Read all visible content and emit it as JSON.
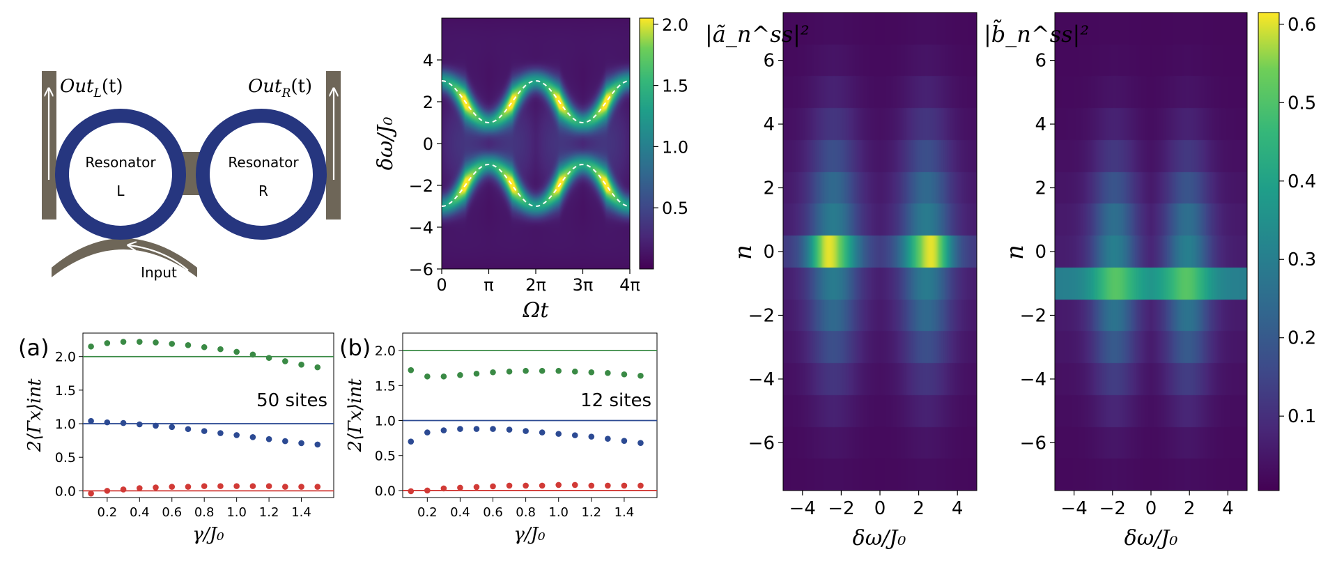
{
  "schematic": {
    "out_left": "Out",
    "out_left_sub": "L",
    "out_right": "Out",
    "out_right_sub": "R",
    "paren_t": "(t)",
    "resonator_left_line1": "Resonator",
    "resonator_left_line2": "L",
    "resonator_right_line1": "Resonator",
    "resonator_right_line2": "R",
    "input_label": "Input",
    "ring_color": "#26367f",
    "waveguide_color": "#6e6658"
  },
  "colors": {
    "green": "#3a8a45",
    "blue": "#2c4a93",
    "red": "#d13a36",
    "dashed": "#ffffff"
  },
  "chart_data": [
    {
      "id": "spectrogram",
      "type": "heatmap",
      "xlabel": "Ωt",
      "ylabel": "δω/J₀",
      "x_ticks": [
        "0",
        "π",
        "2π",
        "3π",
        "4π"
      ],
      "y_ticks": [
        "−6",
        "−4",
        "−2",
        "0",
        "2",
        "4"
      ],
      "xlim": [
        0,
        4
      ],
      "xlim_unit": "π",
      "ylim": [
        -6,
        6
      ],
      "colorbar_ticks": [
        "0.5",
        "1.0",
        "1.5",
        "2.0"
      ],
      "colorbar_range": [
        0,
        2.05
      ],
      "dashed_curves": "±(2 + cos Ωt)"
    },
    {
      "id": "a",
      "panel_label": "(a)",
      "type": "scatter",
      "annotation": "50 sites",
      "xlabel": "γ/J₀",
      "ylabel": "2⟨Γx⟩int",
      "xlim": [
        0.05,
        1.6
      ],
      "ylim": [
        -0.1,
        2.35
      ],
      "x_ticks": [
        "0.2",
        "0.4",
        "0.6",
        "0.8",
        "1.0",
        "1.2",
        "1.4"
      ],
      "y_ticks": [
        "0.0",
        "0.5",
        "1.0",
        "1.5",
        "2.0"
      ],
      "hlines": [
        2.0,
        1.0,
        0.0
      ],
      "x": [
        0.1,
        0.2,
        0.3,
        0.4,
        0.5,
        0.6,
        0.7,
        0.8,
        0.9,
        1.0,
        1.1,
        1.2,
        1.3,
        1.4,
        1.5
      ],
      "series": [
        {
          "values": [
            2.15,
            2.2,
            2.22,
            2.22,
            2.21,
            2.19,
            2.17,
            2.14,
            2.11,
            2.07,
            2.03,
            1.98,
            1.93,
            1.88,
            1.84
          ]
        },
        {
          "values": [
            1.04,
            1.02,
            1.01,
            0.99,
            0.97,
            0.95,
            0.92,
            0.89,
            0.86,
            0.83,
            0.8,
            0.77,
            0.74,
            0.71,
            0.69
          ]
        },
        {
          "values": [
            -0.04,
            0.0,
            0.02,
            0.04,
            0.05,
            0.06,
            0.06,
            0.07,
            0.07,
            0.07,
            0.07,
            0.07,
            0.06,
            0.06,
            0.06
          ]
        }
      ]
    },
    {
      "id": "b",
      "panel_label": "(b)",
      "type": "scatter",
      "annotation": "12 sites",
      "xlabel": "γ/J₀",
      "ylabel": "2⟨Γx⟩int",
      "xlim": [
        0.05,
        1.6
      ],
      "ylim": [
        -0.1,
        2.25
      ],
      "x_ticks": [
        "0.2",
        "0.4",
        "0.6",
        "0.8",
        "1.0",
        "1.2",
        "1.4"
      ],
      "y_ticks": [
        "0.0",
        "0.5",
        "1.0",
        "1.5",
        "2.0"
      ],
      "hlines": [
        2.0,
        1.0,
        0.0
      ],
      "x": [
        0.1,
        0.2,
        0.3,
        0.4,
        0.5,
        0.6,
        0.7,
        0.8,
        0.9,
        1.0,
        1.1,
        1.2,
        1.3,
        1.4,
        1.5
      ],
      "series": [
        {
          "values": [
            1.72,
            1.63,
            1.63,
            1.65,
            1.67,
            1.69,
            1.7,
            1.71,
            1.71,
            1.71,
            1.7,
            1.69,
            1.68,
            1.66,
            1.64
          ]
        },
        {
          "values": [
            0.7,
            0.83,
            0.86,
            0.88,
            0.88,
            0.88,
            0.87,
            0.85,
            0.83,
            0.81,
            0.79,
            0.77,
            0.74,
            0.71,
            0.68
          ]
        },
        {
          "values": [
            -0.01,
            0.0,
            0.03,
            0.04,
            0.05,
            0.06,
            0.07,
            0.07,
            0.07,
            0.08,
            0.08,
            0.07,
            0.07,
            0.07,
            0.07
          ]
        }
      ]
    },
    {
      "id": "a_ss",
      "type": "heatmap",
      "title": "|ã_n^ss|²",
      "xlabel": "δω/J₀",
      "ylabel": "n",
      "x_ticks": [
        "−4",
        "−2",
        "0",
        "2",
        "4"
      ],
      "y_ticks": [
        "−6",
        "−4",
        "−2",
        "0",
        "2",
        "4",
        "6"
      ],
      "xlim": [
        -5,
        5
      ],
      "ylim": [
        -7.5,
        7.5
      ]
    },
    {
      "id": "b_ss",
      "type": "heatmap",
      "title": "|b̃_n^ss|²",
      "xlabel": "δω/J₀",
      "ylabel": "n",
      "x_ticks": [
        "−4",
        "−2",
        "0",
        "2",
        "4"
      ],
      "y_ticks": [
        "−6",
        "−4",
        "−2",
        "0",
        "2",
        "4",
        "6"
      ],
      "xlim": [
        -5,
        5
      ],
      "ylim": [
        -7.5,
        7.5
      ],
      "colorbar_ticks": [
        "0.1",
        "0.2",
        "0.3",
        "0.4",
        "0.5",
        "0.6"
      ],
      "colorbar_range": [
        0.005,
        0.615
      ]
    }
  ]
}
